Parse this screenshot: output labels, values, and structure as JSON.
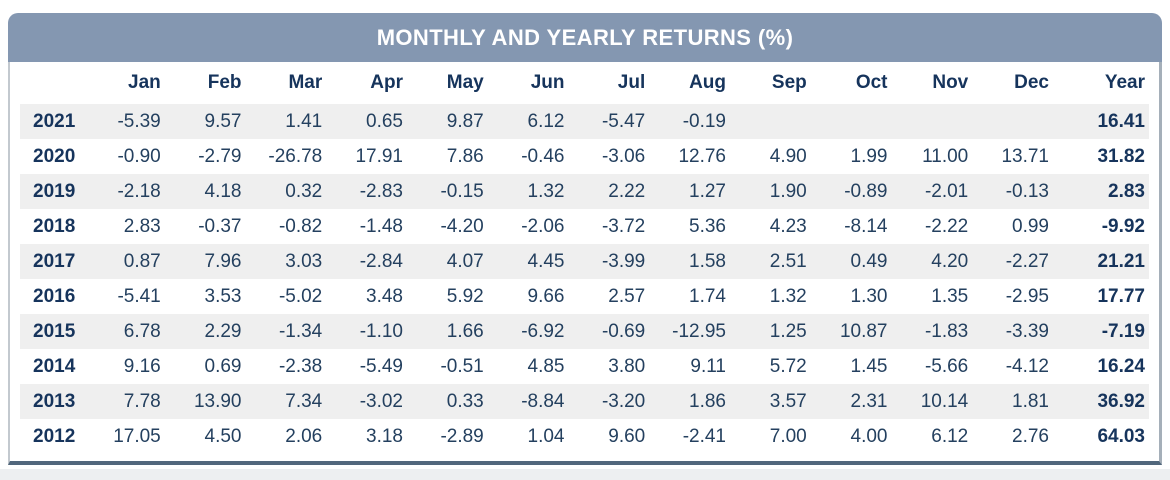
{
  "title_bar": {
    "title": "MONTHLY AND YEARLY RETURNS (%)"
  },
  "chart_data": {
    "type": "table",
    "title": "MONTHLY AND YEARLY RETURNS (%)",
    "columns": [
      "",
      "Jan",
      "Feb",
      "Mar",
      "Apr",
      "May",
      "Jun",
      "Jul",
      "Aug",
      "Sep",
      "Oct",
      "Nov",
      "Dec",
      "Year"
    ],
    "rows": [
      {
        "year": "2021",
        "monthly": [
          "-5.39",
          "9.57",
          "1.41",
          "0.65",
          "9.87",
          "6.12",
          "-5.47",
          "-0.19",
          "",
          "",
          "",
          ""
        ],
        "yearly": "16.41"
      },
      {
        "year": "2020",
        "monthly": [
          "-0.90",
          "-2.79",
          "-26.78",
          "17.91",
          "7.86",
          "-0.46",
          "-3.06",
          "12.76",
          "4.90",
          "1.99",
          "11.00",
          "13.71"
        ],
        "yearly": "31.82"
      },
      {
        "year": "2019",
        "monthly": [
          "-2.18",
          "4.18",
          "0.32",
          "-2.83",
          "-0.15",
          "1.32",
          "2.22",
          "1.27",
          "1.90",
          "-0.89",
          "-2.01",
          "-0.13"
        ],
        "yearly": "2.83"
      },
      {
        "year": "2018",
        "monthly": [
          "2.83",
          "-0.37",
          "-0.82",
          "-1.48",
          "-4.20",
          "-2.06",
          "-3.72",
          "5.36",
          "4.23",
          "-8.14",
          "-2.22",
          "0.99"
        ],
        "yearly": "-9.92"
      },
      {
        "year": "2017",
        "monthly": [
          "0.87",
          "7.96",
          "3.03",
          "-2.84",
          "4.07",
          "4.45",
          "-3.99",
          "1.58",
          "2.51",
          "0.49",
          "4.20",
          "-2.27"
        ],
        "yearly": "21.21"
      },
      {
        "year": "2016",
        "monthly": [
          "-5.41",
          "3.53",
          "-5.02",
          "3.48",
          "5.92",
          "9.66",
          "2.57",
          "1.74",
          "1.32",
          "1.30",
          "1.35",
          "-2.95"
        ],
        "yearly": "17.77"
      },
      {
        "year": "2015",
        "monthly": [
          "6.78",
          "2.29",
          "-1.34",
          "-1.10",
          "1.66",
          "-6.92",
          "-0.69",
          "-12.95",
          "1.25",
          "10.87",
          "-1.83",
          "-3.39"
        ],
        "yearly": "-7.19"
      },
      {
        "year": "2014",
        "monthly": [
          "9.16",
          "0.69",
          "-2.38",
          "-5.49",
          "-0.51",
          "4.85",
          "3.80",
          "9.11",
          "5.72",
          "1.45",
          "-5.66",
          "-4.12"
        ],
        "yearly": "16.24"
      },
      {
        "year": "2013",
        "monthly": [
          "7.78",
          "13.90",
          "7.34",
          "-3.02",
          "0.33",
          "-8.84",
          "-3.20",
          "1.86",
          "3.57",
          "2.31",
          "10.14",
          "1.81"
        ],
        "yearly": "36.92"
      },
      {
        "year": "2012",
        "monthly": [
          "17.05",
          "4.50",
          "2.06",
          "3.18",
          "-2.89",
          "1.04",
          "9.60",
          "-2.41",
          "7.00",
          "4.00",
          "6.12",
          "2.76"
        ],
        "yearly": "64.03"
      }
    ],
    "layout_hints": {
      "striped_rows": "alternating shaded rows starting with first data row (2021)",
      "value_alignment": "right",
      "year_column_style": "bold",
      "row_label_style": "bold"
    }
  },
  "colors": {
    "title_bar_bg": "#8497b1",
    "title_text": "#ffffff",
    "value_text": "#24405f",
    "label_text": "#16345c",
    "row_stripe": "#efefef",
    "border_side": "#b0b9c2",
    "border_bottom": "#51677c"
  }
}
